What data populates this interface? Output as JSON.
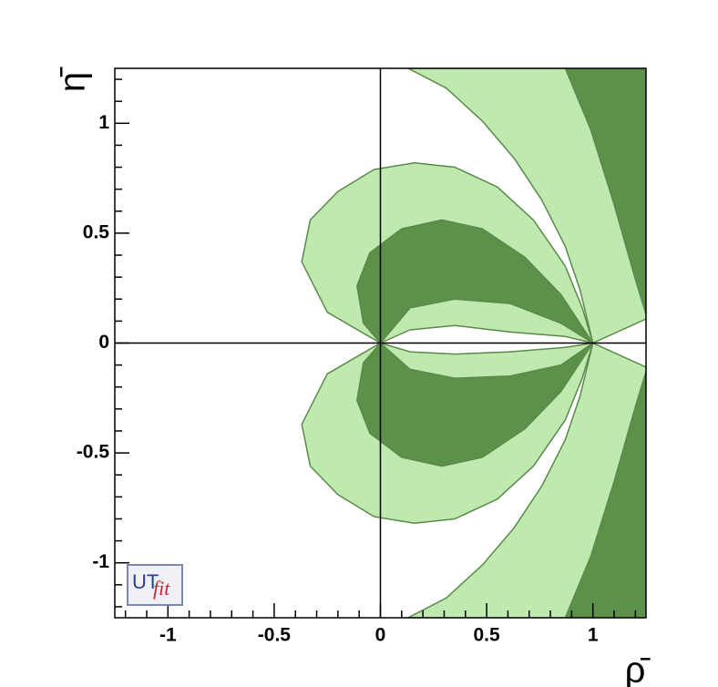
{
  "chart_data": {
    "type": "region",
    "x_label": "ρ̄",
    "y_label": "η̄",
    "logo": [
      "UT",
      "fit"
    ],
    "xlim": [
      -1.25,
      1.25
    ],
    "ylim": [
      -1.25,
      1.25
    ],
    "xticks": [
      -1,
      -0.5,
      0,
      0.5,
      1
    ],
    "yticks": [
      -1,
      -0.5,
      0,
      0.5,
      1
    ],
    "xminorticks": [
      -1.2,
      -1.1,
      -0.9,
      -0.8,
      -0.7,
      -0.6,
      -0.4,
      -0.3,
      -0.2,
      -0.1,
      0.1,
      0.2,
      0.3,
      0.4,
      0.6,
      0.7,
      0.8,
      0.9,
      1.1,
      1.2
    ],
    "yminorticks": [
      -1.2,
      -1.1,
      -0.9,
      -0.8,
      -0.7,
      -0.6,
      -0.4,
      -0.3,
      -0.2,
      -0.1,
      0.1,
      0.2,
      0.3,
      0.4,
      0.6,
      0.7,
      0.8,
      0.9,
      1.1,
      1.2
    ],
    "edge_color": "#5a8a4a",
    "series": [
      {
        "color": "#c0e9b0",
        "x": [
          0.13,
          0.31,
          0.48,
          0.63,
          0.76,
          0.87,
          0.94,
          1,
          1.25,
          1.25
        ],
        "y": [
          1.25,
          1.16,
          1.01,
          0.84,
          0.65,
          0.44,
          0.24,
          0,
          0.11,
          1.25
        ]
      },
      {
        "color": "#c0e9b0",
        "x": [
          0.13,
          0.31,
          0.48,
          0.63,
          0.76,
          0.87,
          0.94,
          1,
          1.25,
          1.25
        ],
        "y": [
          -1.25,
          -1.16,
          -1.01,
          -0.84,
          -0.65,
          -0.44,
          -0.24,
          0,
          -0.11,
          -1.25
        ]
      },
      {
        "color": "#5c914a",
        "x": [
          0.87,
          0.99,
          1.1,
          1.2,
          1.25,
          1.25
        ],
        "y": [
          1.25,
          0.97,
          0.63,
          0.29,
          0.13,
          1.25
        ]
      },
      {
        "color": "#5c914a",
        "x": [
          0.87,
          0.99,
          1.1,
          1.2,
          1.25,
          1.25
        ],
        "y": [
          -1.25,
          -0.97,
          -0.63,
          -0.29,
          -0.13,
          -1.25
        ]
      },
      {
        "color": "#c0e9b0",
        "x": [
          0,
          -0.25,
          -0.37,
          -0.33,
          -0.2,
          -0.03,
          0.16,
          0.35,
          0.55,
          0.72,
          0.87,
          0.95,
          1,
          0.87,
          0.61,
          0.35,
          0.14
        ],
        "y": [
          0,
          0.14,
          0.37,
          0.56,
          0.69,
          0.79,
          0.82,
          0.8,
          0.71,
          0.56,
          0.35,
          0.16,
          0,
          0.03,
          0.05,
          0.08,
          0.06
        ]
      },
      {
        "color": "#c0e9b0",
        "x": [
          0,
          -0.25,
          -0.37,
          -0.33,
          -0.2,
          -0.03,
          0.16,
          0.35,
          0.55,
          0.72,
          0.87,
          0.95,
          1,
          0.87,
          0.61,
          0.35,
          0.14
        ],
        "y": [
          0,
          -0.14,
          -0.37,
          -0.56,
          -0.69,
          -0.79,
          -0.82,
          -0.8,
          -0.71,
          -0.56,
          -0.35,
          -0.16,
          0,
          -0.02,
          -0.04,
          -0.05,
          -0.04
        ]
      },
      {
        "color": "#5c914a",
        "x": [
          0,
          -0.08,
          -0.11,
          -0.05,
          0.1,
          0.29,
          0.48,
          0.68,
          0.85,
          1,
          0.85,
          0.61,
          0.35,
          0.14
        ],
        "y": [
          0,
          0.09,
          0.26,
          0.41,
          0.52,
          0.56,
          0.52,
          0.39,
          0.22,
          0,
          0.09,
          0.18,
          0.2,
          0.16
        ]
      },
      {
        "color": "#5c914a",
        "x": [
          0,
          -0.08,
          -0.11,
          -0.05,
          0.1,
          0.29,
          0.48,
          0.68,
          0.85,
          1,
          0.85,
          0.61,
          0.35,
          0.14
        ],
        "y": [
          0,
          -0.09,
          -0.26,
          -0.41,
          -0.52,
          -0.56,
          -0.52,
          -0.39,
          -0.22,
          0,
          -0.1,
          -0.15,
          -0.16,
          -0.12
        ]
      }
    ]
  }
}
